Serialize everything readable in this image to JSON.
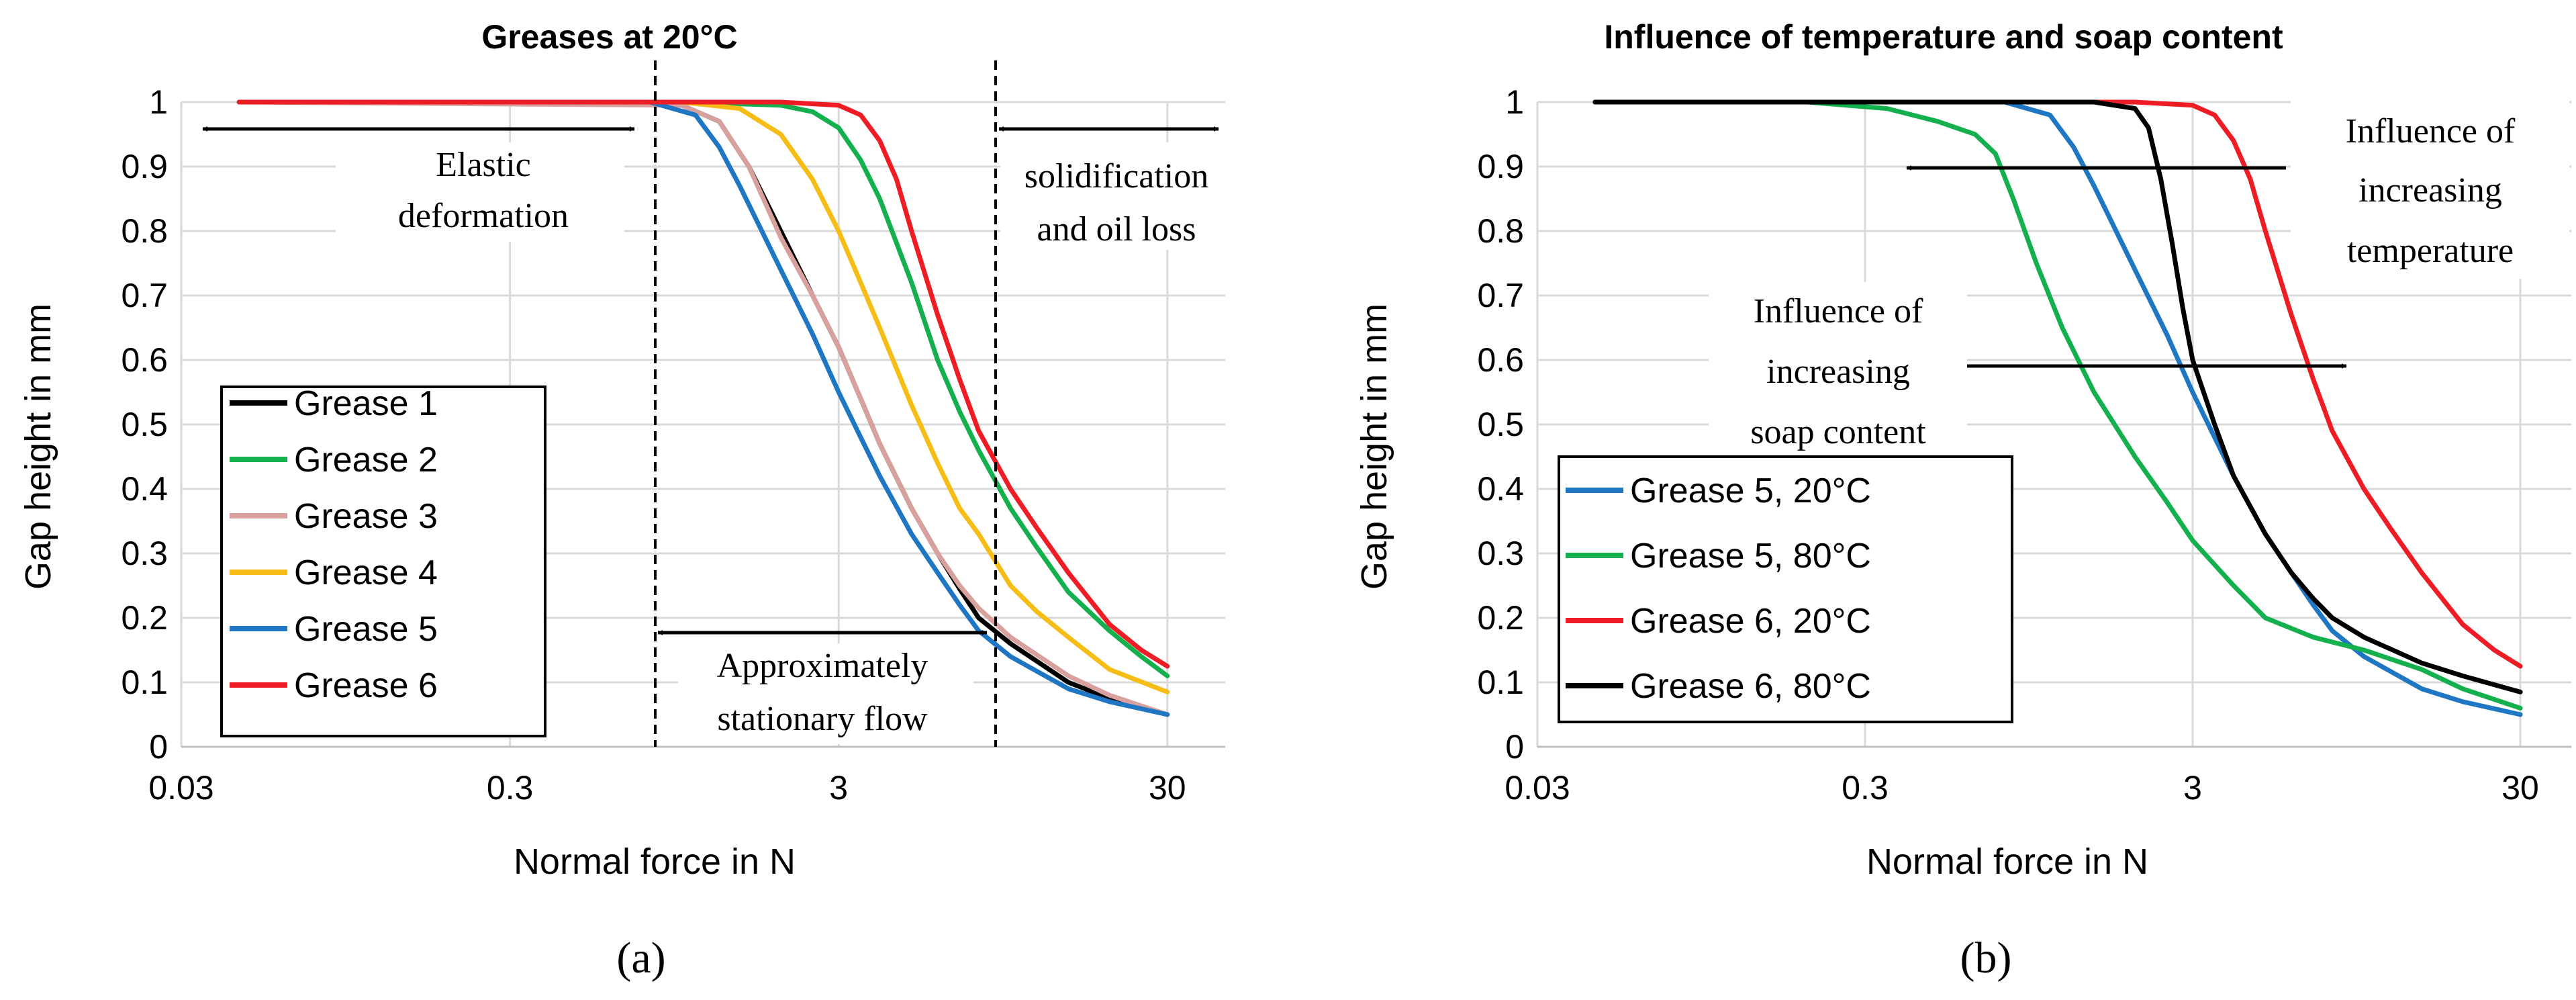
{
  "colors": {
    "black": "#000000",
    "green": "#13b04d",
    "pink": "#d8a19d",
    "yellow": "#f5bd16",
    "blue": "#1f77c4",
    "red": "#ee1c24",
    "grid": "#d9d9d9"
  },
  "chart_data": [
    {
      "type": "line",
      "panel_label": "(a)",
      "title": "Greases at 20°C",
      "xlabel": "Normal force in N",
      "ylabel": "Gap height in mm",
      "xscale": "log",
      "xlim": [
        0.03,
        45
      ],
      "ylim": [
        0,
        1
      ],
      "xticks": [
        0.03,
        0.3,
        3,
        30
      ],
      "xtick_labels": [
        "0.03",
        "0.3",
        "3",
        "30"
      ],
      "yticks": [
        0,
        0.1,
        0.2,
        0.3,
        0.4,
        0.5,
        0.6,
        0.7,
        0.8,
        0.9,
        1
      ],
      "ytick_labels": [
        "0",
        "0.1",
        "0.2",
        "0.3",
        "0.4",
        "0.5",
        "0.6",
        "0.7",
        "0.8",
        "0.9",
        "1"
      ],
      "grid": true,
      "legend_position": "bottom-left",
      "series": [
        {
          "name": "Grease 1",
          "color": "#000000",
          "x": [
            0.045,
            0.5,
            1.0,
            1.3,
            1.6,
            2.0,
            2.5,
            3.0,
            3.5,
            4.0,
            5.0,
            6.0,
            7.0,
            8.0,
            10,
            15,
            20,
            30
          ],
          "y": [
            1.0,
            1.0,
            0.995,
            0.97,
            0.9,
            0.8,
            0.7,
            0.62,
            0.54,
            0.47,
            0.37,
            0.3,
            0.245,
            0.2,
            0.16,
            0.1,
            0.075,
            0.05
          ]
        },
        {
          "name": "Grease 2",
          "color": "#13b04d",
          "x": [
            0.045,
            1.0,
            2.0,
            2.5,
            3.0,
            3.5,
            4.0,
            5.0,
            6.0,
            7.0,
            8.0,
            10,
            12,
            15,
            20,
            25,
            30
          ],
          "y": [
            1.0,
            1.0,
            0.995,
            0.985,
            0.96,
            0.91,
            0.85,
            0.72,
            0.6,
            0.52,
            0.46,
            0.37,
            0.31,
            0.24,
            0.18,
            0.14,
            0.11
          ]
        },
        {
          "name": "Grease 3",
          "color": "#d8a19d",
          "x": [
            0.045,
            1.0,
            1.3,
            1.6,
            2.0,
            2.5,
            3.0,
            3.5,
            4.0,
            5.0,
            6.0,
            7.0,
            8.0,
            10,
            15,
            20,
            30
          ],
          "y": [
            1.0,
            0.995,
            0.97,
            0.9,
            0.79,
            0.7,
            0.62,
            0.54,
            0.47,
            0.37,
            0.3,
            0.25,
            0.215,
            0.17,
            0.11,
            0.08,
            0.05
          ]
        },
        {
          "name": "Grease 4",
          "color": "#f5bd16",
          "x": [
            0.045,
            1.0,
            1.5,
            2.0,
            2.5,
            3.0,
            3.5,
            4.0,
            5.0,
            6.0,
            7.0,
            8.0,
            10,
            12,
            15,
            20,
            30
          ],
          "y": [
            1.0,
            1.0,
            0.99,
            0.95,
            0.88,
            0.8,
            0.72,
            0.65,
            0.53,
            0.44,
            0.37,
            0.33,
            0.25,
            0.21,
            0.17,
            0.12,
            0.085
          ]
        },
        {
          "name": "Grease 5",
          "color": "#1f77c4",
          "x": [
            0.045,
            0.8,
            1.1,
            1.3,
            1.5,
            2.0,
            2.5,
            3.0,
            3.5,
            4.0,
            5.0,
            6.0,
            7.0,
            8.0,
            10,
            15,
            20,
            30
          ],
          "y": [
            1.0,
            1.0,
            0.98,
            0.93,
            0.87,
            0.74,
            0.64,
            0.55,
            0.48,
            0.42,
            0.33,
            0.27,
            0.22,
            0.18,
            0.14,
            0.09,
            0.07,
            0.05
          ]
        },
        {
          "name": "Grease 6",
          "color": "#ee1c24",
          "x": [
            0.045,
            2.0,
            3.0,
            3.5,
            4.0,
            4.5,
            5.0,
            6.0,
            7.0,
            8.0,
            10,
            12,
            15,
            20,
            25,
            30
          ],
          "y": [
            1.0,
            1.0,
            0.995,
            0.98,
            0.94,
            0.88,
            0.8,
            0.67,
            0.57,
            0.49,
            0.4,
            0.34,
            0.27,
            0.19,
            0.15,
            0.125
          ]
        }
      ],
      "annotations": [
        {
          "kind": "text",
          "lines": [
            "Elastic",
            "deformation"
          ]
        },
        {
          "kind": "text",
          "lines": [
            "solidification",
            "and oil loss"
          ]
        },
        {
          "kind": "text",
          "lines": [
            "Approximately",
            "stationary flow"
          ]
        }
      ],
      "vertical_dashed_lines_x": [
        0.9,
        9.0
      ]
    },
    {
      "type": "line",
      "panel_label": "(b)",
      "title": "Influence of temperature and soap content",
      "xlabel": "Normal force in N",
      "ylabel": "Gap height in mm",
      "xscale": "log",
      "xlim": [
        0.03,
        45
      ],
      "ylim": [
        0,
        1
      ],
      "xticks": [
        0.03,
        0.3,
        3,
        30
      ],
      "xtick_labels": [
        "0.03",
        "0.3",
        "3",
        "30"
      ],
      "yticks": [
        0,
        0.1,
        0.2,
        0.3,
        0.4,
        0.5,
        0.6,
        0.7,
        0.8,
        0.9,
        1
      ],
      "ytick_labels": [
        "0",
        "0.1",
        "0.2",
        "0.3",
        "0.4",
        "0.5",
        "0.6",
        "0.7",
        "0.8",
        "0.9",
        "1"
      ],
      "grid": true,
      "legend_position": "bottom-left",
      "series": [
        {
          "name": "Grease 5, 20°C",
          "color": "#1f77c4",
          "x": [
            0.045,
            0.8,
            1.1,
            1.3,
            1.5,
            2.0,
            2.5,
            3.0,
            3.5,
            4.0,
            5.0,
            6.0,
            7.0,
            8.0,
            10,
            15,
            20,
            30
          ],
          "y": [
            1.0,
            1.0,
            0.98,
            0.93,
            0.87,
            0.74,
            0.64,
            0.55,
            0.48,
            0.42,
            0.33,
            0.27,
            0.22,
            0.18,
            0.14,
            0.09,
            0.07,
            0.05
          ]
        },
        {
          "name": "Grease 5, 80°C",
          "color": "#13b04d",
          "x": [
            0.045,
            0.2,
            0.35,
            0.5,
            0.65,
            0.75,
            0.85,
            1.0,
            1.2,
            1.5,
            2.0,
            2.5,
            3.0,
            4.0,
            5.0,
            7.0,
            10,
            15,
            20,
            30
          ],
          "y": [
            1.0,
            1.0,
            0.99,
            0.97,
            0.95,
            0.92,
            0.85,
            0.75,
            0.65,
            0.55,
            0.45,
            0.38,
            0.32,
            0.25,
            0.2,
            0.17,
            0.15,
            0.12,
            0.09,
            0.06
          ]
        },
        {
          "name": "Grease 6, 20°C",
          "color": "#ee1c24",
          "x": [
            0.045,
            2.0,
            3.0,
            3.5,
            4.0,
            4.5,
            5.0,
            6.0,
            7.0,
            8.0,
            10,
            12,
            15,
            20,
            25,
            30
          ],
          "y": [
            1.0,
            1.0,
            0.995,
            0.98,
            0.94,
            0.88,
            0.8,
            0.67,
            0.57,
            0.49,
            0.4,
            0.34,
            0.27,
            0.19,
            0.15,
            0.125
          ]
        },
        {
          "name": "Grease 6, 80°C",
          "color": "#000000",
          "x": [
            0.045,
            1.5,
            2.0,
            2.2,
            2.4,
            2.6,
            2.8,
            3.0,
            3.5,
            4.0,
            5.0,
            6.0,
            7.0,
            8.0,
            10,
            15,
            20,
            30
          ],
          "y": [
            1.0,
            1.0,
            0.99,
            0.96,
            0.88,
            0.78,
            0.68,
            0.6,
            0.5,
            0.42,
            0.33,
            0.27,
            0.23,
            0.2,
            0.17,
            0.13,
            0.11,
            0.085
          ]
        }
      ],
      "annotations": [
        {
          "kind": "text",
          "lines": [
            "Influence of",
            "increasing",
            "temperature"
          ]
        },
        {
          "kind": "text",
          "lines": [
            "Influence of",
            "increasing",
            "soap content"
          ]
        }
      ]
    }
  ]
}
